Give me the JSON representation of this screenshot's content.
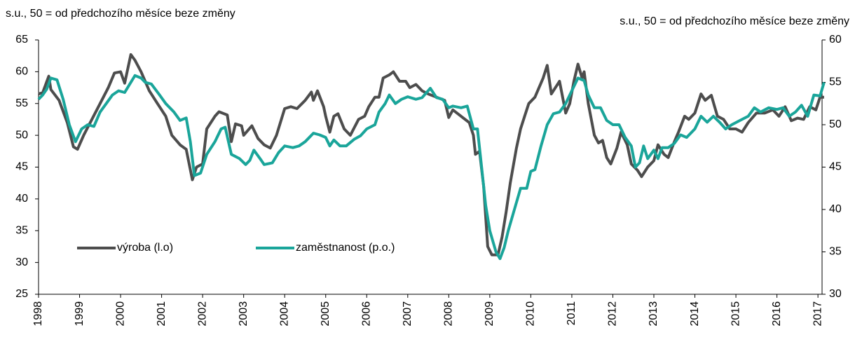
{
  "chart_data": {
    "type": "line",
    "ylabel": "s.u., 50 = od předchozího měsíce beze změny",
    "y2label": "s.u., 50 = od předchozího měsíce beze změny",
    "xlim": [
      1998,
      2017.1
    ],
    "xticks": [
      1998,
      1999,
      2000,
      2001,
      2002,
      2003,
      2004,
      2005,
      2006,
      2007,
      2008,
      2009,
      2010,
      2011,
      2012,
      2013,
      2014,
      2015,
      2016,
      2017
    ],
    "ylim": [
      25,
      65
    ],
    "yticks": [
      25,
      30,
      35,
      40,
      45,
      50,
      55,
      60,
      65
    ],
    "y2lim": [
      30,
      60
    ],
    "y2ticks": [
      30,
      35,
      40,
      45,
      50,
      55,
      60
    ],
    "grid": false,
    "series": [
      {
        "name": "výroba (l.o)",
        "color": "#4d4d4d",
        "axis": "y",
        "x": [
          1998.0,
          1998.1,
          1998.25,
          1998.3,
          1998.5,
          1998.7,
          1998.85,
          1998.95,
          1999.1,
          1999.3,
          1999.5,
          1999.7,
          1999.85,
          2000.0,
          2000.1,
          2000.25,
          2000.35,
          2000.5,
          2000.7,
          2000.9,
          2001.1,
          2001.25,
          2001.45,
          2001.6,
          2001.75,
          2001.85,
          2002.0,
          2002.1,
          2002.3,
          2002.4,
          2002.6,
          2002.7,
          2002.8,
          2002.95,
          2003.0,
          2003.2,
          2003.35,
          2003.5,
          2003.65,
          2003.8,
          2004.0,
          2004.15,
          2004.3,
          2004.5,
          2004.65,
          2004.7,
          2004.8,
          2004.95,
          2005.0,
          2005.1,
          2005.2,
          2005.3,
          2005.45,
          2005.6,
          2005.8,
          2005.95,
          2006.05,
          2006.2,
          2006.3,
          2006.4,
          2006.55,
          2006.65,
          2006.8,
          2006.95,
          2007.05,
          2007.2,
          2007.35,
          2007.5,
          2007.7,
          2007.9,
          2008.0,
          2008.1,
          2008.3,
          2008.5,
          2008.6,
          2008.65,
          2008.75,
          2008.85,
          2008.95,
          2009.05,
          2009.2,
          2009.3,
          2009.4,
          2009.5,
          2009.65,
          2009.75,
          2009.85,
          2009.95,
          2010.1,
          2010.3,
          2010.4,
          2010.5,
          2010.6,
          2010.7,
          2010.85,
          2010.95,
          2011.05,
          2011.15,
          2011.25,
          2011.3,
          2011.4,
          2011.55,
          2011.65,
          2011.75,
          2011.85,
          2011.95,
          2012.1,
          2012.2,
          2012.35,
          2012.45,
          2012.6,
          2012.7,
          2012.85,
          2013.0,
          2013.1,
          2013.25,
          2013.35,
          2013.5,
          2013.6,
          2013.75,
          2013.85,
          2014.0,
          2014.15,
          2014.25,
          2014.4,
          2014.55,
          2014.7,
          2014.85,
          2015.0,
          2015.15,
          2015.3,
          2015.5,
          2015.7,
          2015.9,
          2016.05,
          2016.2,
          2016.35,
          2016.5,
          2016.65,
          2016.8,
          2016.95,
          2017.05,
          2017.15
        ],
        "values": [
          56.5,
          56.7,
          59.3,
          57.2,
          55.5,
          52,
          48.2,
          47.8,
          50,
          52.5,
          55,
          57.5,
          59.8,
          60,
          58.2,
          62.7,
          61.8,
          60,
          57,
          55,
          53,
          50,
          48.5,
          47.8,
          43,
          45,
          45.5,
          51,
          53,
          53.7,
          53.2,
          49,
          51.8,
          51.5,
          50,
          51.5,
          49.5,
          48.5,
          48,
          50,
          54.2,
          54.5,
          54.2,
          55.5,
          56.8,
          55.5,
          57,
          54.5,
          53,
          50.5,
          53,
          53.4,
          51,
          50,
          52.5,
          53,
          54.5,
          56,
          56,
          59,
          59.5,
          60,
          58.5,
          58.5,
          57.5,
          58,
          57,
          56.5,
          56,
          55.5,
          52.8,
          54,
          53,
          52,
          50,
          47,
          47.5,
          42,
          32.5,
          31.2,
          31.2,
          34,
          38,
          42.5,
          48,
          51,
          53,
          55,
          56,
          59,
          61,
          56.5,
          57.5,
          58.5,
          53.5,
          55,
          58.5,
          61.2,
          59,
          60,
          55,
          50,
          48.8,
          49.2,
          46.5,
          45.5,
          48,
          50.5,
          48.5,
          45.5,
          44.5,
          43.5,
          45,
          46,
          48.5,
          47,
          46.5,
          49,
          50.5,
          53,
          52.5,
          53.5,
          56.5,
          55.5,
          56.3,
          53,
          52.5,
          51,
          51,
          50.5,
          52,
          53.5,
          53.5,
          54,
          53,
          54.5,
          52.3,
          52.7,
          52.5,
          54.5,
          54,
          56,
          56
        ]
      },
      {
        "name": "zaměstnanost (p.o.)",
        "color": "#1aa59a",
        "axis": "y2",
        "x": [
          1998.0,
          1998.1,
          1998.2,
          1998.3,
          1998.45,
          1998.6,
          1998.75,
          1998.9,
          1999.05,
          1999.2,
          1999.35,
          1999.5,
          1999.65,
          1999.8,
          1999.95,
          2000.1,
          2000.25,
          2000.35,
          2000.5,
          2000.6,
          2000.75,
          2000.95,
          2001.1,
          2001.3,
          2001.45,
          2001.6,
          2001.7,
          2001.8,
          2001.95,
          2002.1,
          2002.3,
          2002.45,
          2002.55,
          2002.7,
          2002.9,
          2003.05,
          2003.15,
          2003.25,
          2003.4,
          2003.5,
          2003.7,
          2003.85,
          2004.0,
          2004.2,
          2004.35,
          2004.5,
          2004.7,
          2004.85,
          2005.0,
          2005.1,
          2005.2,
          2005.35,
          2005.5,
          2005.7,
          2005.85,
          2006.0,
          2006.2,
          2006.3,
          2006.45,
          2006.55,
          2006.7,
          2006.85,
          2007.0,
          2007.2,
          2007.35,
          2007.55,
          2007.7,
          2007.85,
          2008.0,
          2008.1,
          2008.3,
          2008.45,
          2008.6,
          2008.7,
          2008.8,
          2008.9,
          2009.0,
          2009.15,
          2009.25,
          2009.35,
          2009.45,
          2009.6,
          2009.75,
          2009.9,
          2010.0,
          2010.1,
          2010.25,
          2010.4,
          2010.55,
          2010.7,
          2010.85,
          2011.0,
          2011.15,
          2011.3,
          2011.4,
          2011.55,
          2011.7,
          2011.85,
          2012.0,
          2012.15,
          2012.3,
          2012.45,
          2012.55,
          2012.65,
          2012.75,
          2012.85,
          2013.0,
          2013.1,
          2013.2,
          2013.35,
          2013.5,
          2013.65,
          2013.8,
          2014.0,
          2014.15,
          2014.3,
          2014.45,
          2014.6,
          2014.75,
          2014.9,
          2015.1,
          2015.3,
          2015.45,
          2015.6,
          2015.8,
          2016.0,
          2016.15,
          2016.3,
          2016.45,
          2016.6,
          2016.75,
          2016.9,
          2017.05,
          2017.15
        ],
        "values": [
          53,
          53.5,
          54.2,
          55.5,
          55.3,
          53,
          50,
          48,
          49.5,
          50,
          49.8,
          51.5,
          52.5,
          53.5,
          54,
          53.8,
          55,
          55.8,
          55.5,
          55,
          54.8,
          53.5,
          52.5,
          51.5,
          50.5,
          50.8,
          48,
          44,
          44.3,
          46.5,
          48,
          49.5,
          49.7,
          46.5,
          46,
          45.3,
          45.8,
          47,
          46,
          45.3,
          45.5,
          46.7,
          47.5,
          47.3,
          47.5,
          48,
          49,
          48.8,
          48.5,
          47.5,
          48.2,
          47.5,
          47.5,
          48.3,
          48.7,
          49.5,
          50,
          51.5,
          52.5,
          53.5,
          52.5,
          53,
          53.3,
          53,
          53.2,
          54.3,
          53.2,
          53,
          52,
          52.2,
          52,
          52.2,
          49.5,
          49.5,
          45,
          40.5,
          37.5,
          35,
          34.2,
          35.5,
          37.5,
          40,
          42.5,
          42.5,
          44.5,
          44.7,
          47.5,
          50,
          51.3,
          51.5,
          52.5,
          54,
          55.5,
          55.2,
          53.5,
          52,
          52,
          50.5,
          50,
          50,
          48.5,
          47.5,
          45,
          45.5,
          47.5,
          46,
          47,
          46,
          47.3,
          47.3,
          47.8,
          48.8,
          48.5,
          49.5,
          51,
          50.3,
          51,
          50.3,
          49.5,
          50,
          50.5,
          51,
          52,
          51.5,
          52,
          51.8,
          52,
          51,
          51.5,
          52.3,
          51,
          53.5,
          53.4,
          55
        ]
      }
    ]
  }
}
